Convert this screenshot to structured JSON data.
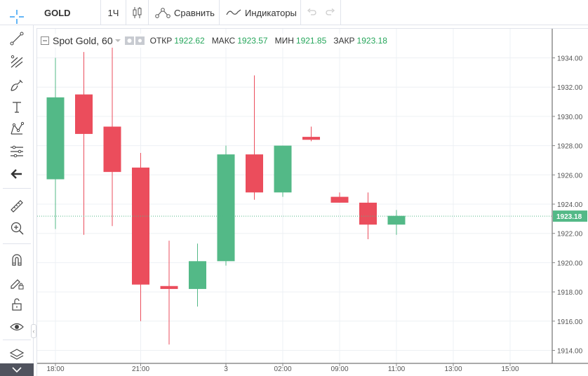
{
  "toolbar": {
    "symbol": "GOLD",
    "interval": "1Ч",
    "compare_label": "Сравнить",
    "indicators_label": "Индикаторы"
  },
  "legend": {
    "title": "Spot Gold, 60",
    "open_label": "ОТКР",
    "open_value": "1922.62",
    "high_label": "МАКС",
    "high_value": "1923.57",
    "low_label": "МИН",
    "low_value": "1921.85",
    "close_label": "ЗАКР",
    "close_value": "1923.18"
  },
  "colors": {
    "up": "#53b987",
    "down": "#eb4d5c",
    "price_line": "#53b987",
    "value_up": "#26a65b"
  },
  "left_toolbar_icons": [
    "crosshair-icon",
    "trend-line-icon",
    "pitchfork-icon",
    "brush-icon",
    "text-icon",
    "pattern-icon",
    "prediction-icon",
    "back-arrow-icon",
    "ruler-icon",
    "zoom-in-icon",
    "magnet-icon",
    "lock-drawings-icon",
    "unlock-icon",
    "eye-icon",
    "layers-icon",
    "chevron-down-icon"
  ],
  "chart_data": {
    "type": "candlestick",
    "title": "Spot Gold, 60",
    "x_labels": [
      "18:00",
      "21:00",
      "3",
      "02:00",
      "09:00",
      "11:00",
      "13:00",
      "15:00"
    ],
    "y_ticks": [
      "1934.00",
      "1932.00",
      "1930.00",
      "1928.00",
      "1926.00",
      "1924.00",
      "1922.00",
      "1920.00",
      "1918.00",
      "1916.00",
      "1914.00"
    ],
    "ylim": [
      1913.0,
      1935.0
    ],
    "current_price": 1923.18,
    "current_price_label": "1923.18",
    "candles": [
      {
        "o": 1925.7,
        "h": 1934.0,
        "l": 1922.3,
        "c": 1931.3
      },
      {
        "o": 1931.5,
        "h": 1934.4,
        "l": 1921.9,
        "c": 1928.8
      },
      {
        "o": 1929.3,
        "h": 1935.0,
        "l": 1922.5,
        "c": 1926.2
      },
      {
        "o": 1926.5,
        "h": 1927.5,
        "l": 1916.0,
        "c": 1918.5
      },
      {
        "o": 1918.4,
        "h": 1921.5,
        "l": 1914.4,
        "c": 1918.2
      },
      {
        "o": 1918.2,
        "h": 1921.3,
        "l": 1917.0,
        "c": 1920.1
      },
      {
        "o": 1920.1,
        "h": 1928.0,
        "l": 1919.8,
        "c": 1927.4
      },
      {
        "o": 1927.4,
        "h": 1932.8,
        "l": 1924.3,
        "c": 1924.8
      },
      {
        "o": 1924.8,
        "h": 1928.0,
        "l": 1924.5,
        "c": 1928.0
      },
      {
        "o": 1928.6,
        "h": 1929.3,
        "l": 1928.3,
        "c": 1928.4
      },
      {
        "o": 1924.5,
        "h": 1924.8,
        "l": 1924.1,
        "c": 1924.1
      },
      {
        "o": 1924.1,
        "h": 1924.8,
        "l": 1921.6,
        "c": 1922.6
      },
      {
        "o": 1922.6,
        "h": 1923.6,
        "l": 1921.9,
        "c": 1923.2
      }
    ],
    "grid": true
  }
}
